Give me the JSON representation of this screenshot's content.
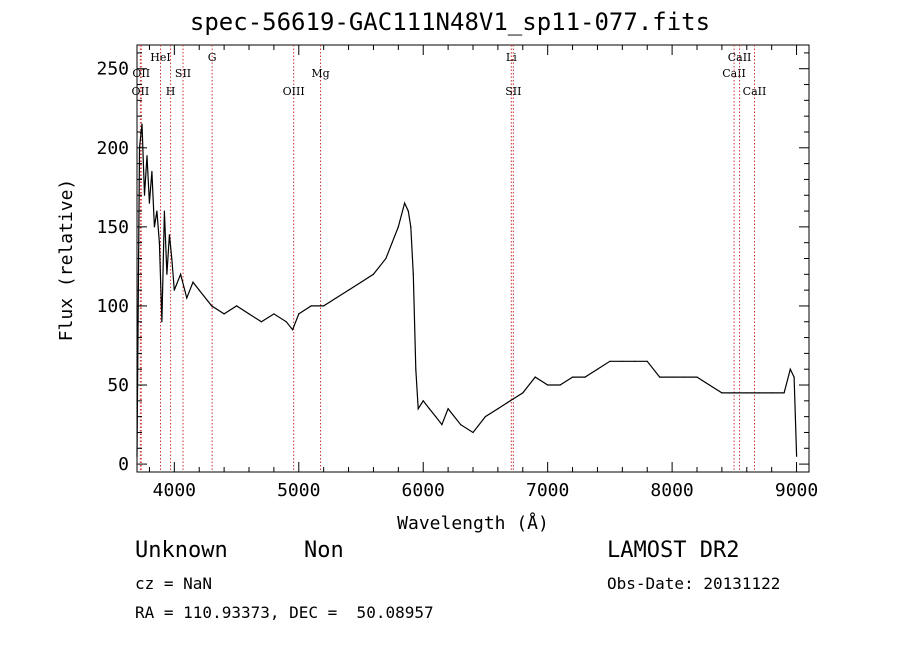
{
  "chart_data": {
    "type": "line",
    "title": "spec-56619-GAC111N48V1_sp11-077.fits",
    "xlabel": "Wavelength (Å)",
    "ylabel": "Flux (relative)",
    "xlim": [
      3700,
      9100
    ],
    "ylim": [
      -5,
      265
    ],
    "xticks": [
      4000,
      5000,
      6000,
      7000,
      8000,
      9000
    ],
    "yticks": [
      0,
      50,
      100,
      150,
      200,
      250
    ],
    "grid": false,
    "line_color": "#000000",
    "marker_color": "#cc3333",
    "series": [
      {
        "x": [
          3700,
          3720,
          3740,
          3760,
          3780,
          3800,
          3820,
          3840,
          3860,
          3880,
          3900,
          3920,
          3940,
          3960,
          3980,
          4000,
          4050,
          4100,
          4150,
          4200,
          4300,
          4400,
          4500,
          4600,
          4700,
          4800,
          4900,
          4950,
          5000,
          5100,
          5200,
          5300,
          5400,
          5500,
          5600,
          5700,
          5750,
          5800,
          5850,
          5880,
          5900,
          5920,
          5940,
          5960,
          6000,
          6050,
          6100,
          6150,
          6200,
          6300,
          6400,
          6500,
          6600,
          6700,
          6800,
          6900,
          7000,
          7100,
          7200,
          7300,
          7400,
          7500,
          7600,
          7700,
          7800,
          7900,
          8000,
          8100,
          8200,
          8300,
          8400,
          8500,
          8600,
          8700,
          8800,
          8900,
          8950,
          8980,
          9000
        ],
        "y": [
          5,
          200,
          215,
          170,
          195,
          165,
          185,
          150,
          160,
          140,
          90,
          160,
          120,
          145,
          130,
          110,
          120,
          105,
          115,
          110,
          100,
          95,
          100,
          95,
          90,
          95,
          90,
          85,
          95,
          100,
          100,
          105,
          110,
          115,
          120,
          130,
          140,
          150,
          165,
          160,
          150,
          120,
          60,
          35,
          40,
          35,
          30,
          25,
          35,
          25,
          20,
          30,
          35,
          40,
          45,
          55,
          50,
          50,
          55,
          55,
          60,
          65,
          65,
          65,
          65,
          55,
          55,
          55,
          55,
          50,
          45,
          45,
          45,
          45,
          45,
          45,
          60,
          55,
          5
        ]
      }
    ],
    "line_markers": [
      {
        "x": 3727,
        "label": "OII",
        "row": 2
      },
      {
        "x": 3734,
        "label": "OII",
        "row": 1
      },
      {
        "x": 3889,
        "label": "HeI",
        "row": 0
      },
      {
        "x": 3970,
        "label": "H",
        "row": 2
      },
      {
        "x": 4070,
        "label": "SII",
        "row": 1
      },
      {
        "x": 4304,
        "label": "G",
        "row": 0
      },
      {
        "x": 4959,
        "label": "OIII",
        "row": 2
      },
      {
        "x": 5175,
        "label": "Mg",
        "row": 1
      },
      {
        "x": 6708,
        "label": "Li",
        "row": 0
      },
      {
        "x": 6724,
        "label": "SII",
        "row": 2
      },
      {
        "x": 8498,
        "label": "CaII",
        "row": 1
      },
      {
        "x": 8542,
        "label": "CaII",
        "row": 0
      },
      {
        "x": 8662,
        "label": "CaII",
        "row": 2
      }
    ]
  },
  "info": {
    "class": "Unknown",
    "subclass": "Non",
    "cz": "cz = NaN",
    "radec": "RA = 110.93373, DEC =  50.08957",
    "survey": "LAMOST DR2",
    "obsdate": "Obs-Date: 20131122"
  }
}
